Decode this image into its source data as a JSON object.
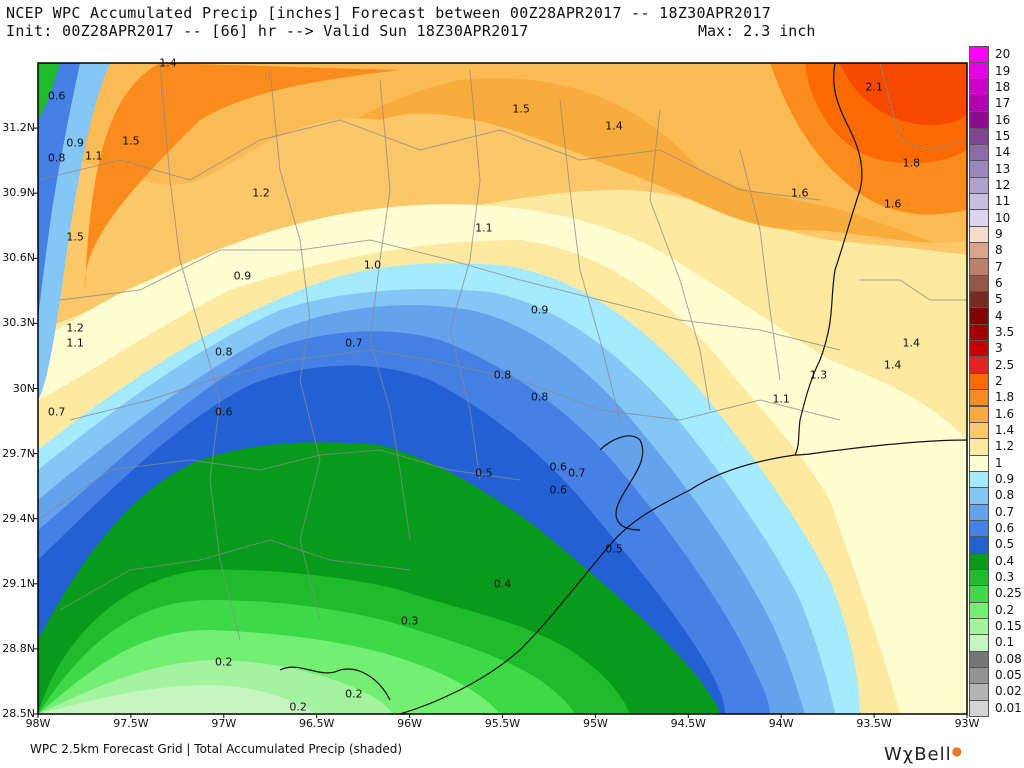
{
  "header": {
    "line1": "NCEP WPC Accumulated Precip [inches] Forecast between 00Z28APR2017 -- 18Z30APR2017",
    "line2": "Init: 00Z28APR2017 -- [66] hr --> Valid Sun 18Z30APR2017",
    "max_label": "Max: 2.3 inch"
  },
  "axes": {
    "lat_labels": [
      "31.2N",
      "30.9N",
      "30.6N",
      "30.3N",
      "30N",
      "29.7N",
      "29.4N",
      "29.1N",
      "28.8N",
      "28.5N"
    ],
    "lon_labels": [
      "98W",
      "97.5W",
      "97W",
      "96.5W",
      "96W",
      "95.5W",
      "95W",
      "94.5W",
      "94W",
      "93.5W",
      "93W"
    ]
  },
  "map_values": [
    {
      "t": "1.4",
      "lon": -97.3,
      "lat": 31.5
    },
    {
      "t": "0.6",
      "lon": -97.9,
      "lat": 31.35
    },
    {
      "t": "0.9",
      "lon": -97.8,
      "lat": 31.13
    },
    {
      "t": "0.8",
      "lon": -97.9,
      "lat": 31.06
    },
    {
      "t": "1.1",
      "lon": -97.7,
      "lat": 31.07
    },
    {
      "t": "1.5",
      "lon": -97.5,
      "lat": 31.14
    },
    {
      "t": "1.5",
      "lon": -95.4,
      "lat": 31.29
    },
    {
      "t": "1.4",
      "lon": -94.9,
      "lat": 31.21
    },
    {
      "t": "2.1",
      "lon": -93.5,
      "lat": 31.39
    },
    {
      "t": "1.8",
      "lon": -93.3,
      "lat": 31.04
    },
    {
      "t": "1.6",
      "lon": -93.9,
      "lat": 30.9
    },
    {
      "t": "1.6",
      "lon": -93.4,
      "lat": 30.85
    },
    {
      "t": "1.2",
      "lon": -96.8,
      "lat": 30.9
    },
    {
      "t": "1.1",
      "lon": -95.6,
      "lat": 30.74
    },
    {
      "t": "1.5",
      "lon": -97.8,
      "lat": 30.7
    },
    {
      "t": "1.0",
      "lon": -96.2,
      "lat": 30.57
    },
    {
      "t": "0.9",
      "lon": -96.9,
      "lat": 30.52
    },
    {
      "t": "0.9",
      "lon": -95.3,
      "lat": 30.36
    },
    {
      "t": "1.2",
      "lon": -97.8,
      "lat": 30.28
    },
    {
      "t": "1.1",
      "lon": -97.8,
      "lat": 30.21
    },
    {
      "t": "0.8",
      "lon": -97.0,
      "lat": 30.17
    },
    {
      "t": "0.7",
      "lon": -96.3,
      "lat": 30.21
    },
    {
      "t": "1.4",
      "lon": -93.3,
      "lat": 30.21
    },
    {
      "t": "1.4",
      "lon": -93.4,
      "lat": 30.11
    },
    {
      "t": "1.3",
      "lon": -93.8,
      "lat": 30.06
    },
    {
      "t": "0.8",
      "lon": -95.5,
      "lat": 30.06
    },
    {
      "t": "1.1",
      "lon": -94.0,
      "lat": 29.95
    },
    {
      "t": "0.8",
      "lon": -95.3,
      "lat": 29.96
    },
    {
      "t": "0.7",
      "lon": -97.9,
      "lat": 29.89
    },
    {
      "t": "0.6",
      "lon": -97.0,
      "lat": 29.89
    },
    {
      "t": "0.6",
      "lon": -95.2,
      "lat": 29.64
    },
    {
      "t": "0.7",
      "lon": -95.1,
      "lat": 29.61
    },
    {
      "t": "0.5",
      "lon": -95.6,
      "lat": 29.61
    },
    {
      "t": "0.6",
      "lon": -95.2,
      "lat": 29.53
    },
    {
      "t": "0.5",
      "lon": -94.9,
      "lat": 29.26
    },
    {
      "t": "0.4",
      "lon": -95.5,
      "lat": 29.1
    },
    {
      "t": "0.3",
      "lon": -96.0,
      "lat": 28.93
    },
    {
      "t": "0.2",
      "lon": -97.0,
      "lat": 28.74
    },
    {
      "t": "0.2",
      "lon": -96.3,
      "lat": 28.59
    },
    {
      "t": "0.2",
      "lon": -96.6,
      "lat": 28.53
    }
  ],
  "legend": {
    "labels": [
      "20",
      "19",
      "18",
      "17",
      "16",
      "15",
      "14",
      "13",
      "12",
      "11",
      "10",
      "9",
      "8",
      "7",
      "6",
      "5",
      "4",
      "3.5",
      "3",
      "2.5",
      "2",
      "1.8",
      "1.6",
      "1.4",
      "1.2",
      "1",
      "0.9",
      "0.8",
      "0.7",
      "0.6",
      "0.5",
      "0.4",
      "0.3",
      "0.25",
      "0.2",
      "0.15",
      "0.1",
      "0.08",
      "0.05",
      "0.02",
      "0.01"
    ],
    "colors": [
      "#ff00ff",
      "#e600e6",
      "#cc00cc",
      "#b000b0",
      "#8e0a8e",
      "#7d4690",
      "#8c6ba6",
      "#9c87bc",
      "#b0a0d0",
      "#c6bde0",
      "#ddd5ee",
      "#f3dccc",
      "#d9a48c",
      "#b9806a",
      "#935746",
      "#752c1e",
      "#820000",
      "#a30000",
      "#c40000",
      "#e32222",
      "#fb6a00",
      "#fa8c1d",
      "#f9ac3c",
      "#fcc86a",
      "#fde99f",
      "#fffdd2",
      "#a6eaff",
      "#85c6f6",
      "#65a2ee",
      "#4581e4",
      "#2260d4",
      "#089a1a",
      "#1ebc2b",
      "#3ed946",
      "#73ef74",
      "#a4f3a0",
      "#c6f6c0",
      "#767676",
      "#939393",
      "#b4b4b4",
      "#d4d4d4"
    ]
  },
  "footer": {
    "text": "WPC 2.5km Forecast Grid | Total Accumulated Precip (shaded)",
    "brand": "WχBell"
  }
}
